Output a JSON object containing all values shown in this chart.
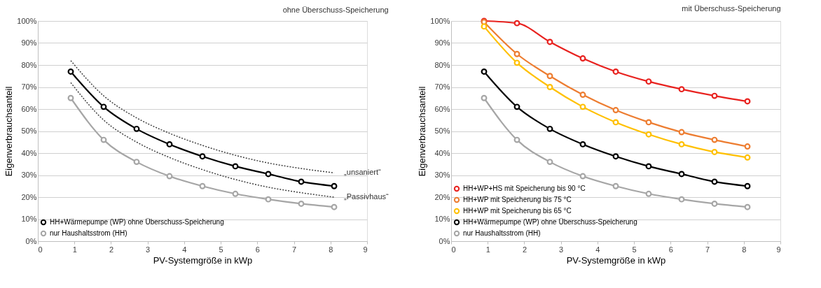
{
  "chart_data": [
    {
      "type": "line",
      "title": "ohne Überschuss-Speicherung",
      "xlabel": "PV-Systemgröße in kWp",
      "ylabel": "Eigenverbrauchsanteil",
      "x": [
        0.9,
        1.8,
        2.7,
        3.6,
        4.5,
        5.4,
        6.3,
        7.2,
        8.1
      ],
      "series": [
        {
          "name": "HH+Wärmepumpe (WP) ohne Überschuss-Speicherung",
          "color": "#000000",
          "values": [
            77,
            61,
            51,
            44,
            38.5,
            34,
            30.5,
            27,
            25
          ]
        },
        {
          "name": "nur Haushaltsstrom (HH)",
          "color": "#a6a6a6",
          "values": [
            65,
            46,
            36,
            29.5,
            25,
            21.5,
            19,
            17,
            15.5
          ]
        },
        {
          "color": "#404040",
          "line_style": "dotted",
          "marker": "none",
          "values": [
            82,
            66,
            56,
            49,
            43.5,
            39,
            35.5,
            33,
            31
          ]
        },
        {
          "color": "#404040",
          "line_style": "dotted",
          "marker": "none",
          "values": [
            72,
            55,
            45,
            38,
            32.5,
            28,
            24.5,
            22,
            20
          ]
        }
      ],
      "annotations": [
        "„unsaniert“",
        "„Passivhaus“"
      ],
      "xlim": [
        0,
        9
      ],
      "xticks": [
        0,
        1,
        2,
        3,
        4,
        5,
        6,
        7,
        8,
        9
      ],
      "ylim": [
        0,
        100
      ],
      "yticks": [
        {
          "value": 0,
          "label": "0%"
        },
        {
          "value": 10,
          "label": "10%"
        },
        {
          "value": 20,
          "label": "20%"
        },
        {
          "value": 30,
          "label": "30%"
        },
        {
          "value": 40,
          "label": "40%"
        },
        {
          "value": 50,
          "label": "50%"
        },
        {
          "value": 60,
          "label": "60%"
        },
        {
          "value": 70,
          "label": "70%"
        },
        {
          "value": 80,
          "label": "80%"
        },
        {
          "value": 90,
          "label": "90%"
        },
        {
          "value": 100,
          "label": "100%"
        }
      ],
      "grid": "y",
      "legend": "bottom left",
      "marker": "circle",
      "line_style": "solid"
    },
    {
      "type": "line",
      "title": "mit Überschuss-Speicherung",
      "xlabel": "PV-Systemgröße in kWp",
      "ylabel": "Eigenverbrauchsanteil",
      "x": [
        0.9,
        1.8,
        2.7,
        3.6,
        4.5,
        5.4,
        6.3,
        7.2,
        8.1
      ],
      "series": [
        {
          "name": "HH+WP+HS mit Speicherung bis 90 °C",
          "color": "#e8221f",
          "values": [
            100,
            99,
            90.5,
            83,
            77,
            72.5,
            69,
            66,
            63.5
          ]
        },
        {
          "name": "HH+WP mit Speicherung bis 75 °C",
          "color": "#ed7d31",
          "values": [
            99.5,
            85,
            75,
            66.5,
            59.5,
            54,
            49.5,
            46,
            43
          ]
        },
        {
          "name": "HH+WP mit Speicherung bis 65 °C",
          "color": "#ffc000",
          "values": [
            97.5,
            81,
            70,
            61,
            54,
            48.5,
            44,
            40.5,
            38
          ]
        },
        {
          "name": "HH+Wärmepumpe (WP) ohne Überschuss-Speicherung",
          "color": "#000000",
          "values": [
            77,
            61,
            51,
            44,
            38.5,
            34,
            30.5,
            27,
            25
          ]
        },
        {
          "name": "nur Haushaltsstrom (HH)",
          "color": "#a6a6a6",
          "values": [
            65,
            46,
            36,
            29.5,
            25,
            21.5,
            19,
            17,
            15.5
          ]
        }
      ],
      "xlim": [
        0,
        9
      ],
      "xticks": [
        0,
        1,
        2,
        3,
        4,
        5,
        6,
        7,
        8,
        9
      ],
      "ylim": [
        0,
        100
      ],
      "yticks": [
        {
          "value": 0,
          "label": "0%"
        },
        {
          "value": 10,
          "label": "10%"
        },
        {
          "value": 20,
          "label": "20%"
        },
        {
          "value": 30,
          "label": "30%"
        },
        {
          "value": 40,
          "label": "40%"
        },
        {
          "value": 50,
          "label": "50%"
        },
        {
          "value": 60,
          "label": "60%"
        },
        {
          "value": 70,
          "label": "70%"
        },
        {
          "value": 80,
          "label": "80%"
        },
        {
          "value": 90,
          "label": "90%"
        },
        {
          "value": 100,
          "label": "100%"
        }
      ],
      "grid": "y",
      "legend": "bottom left",
      "marker": "circle",
      "line_style": "solid"
    }
  ]
}
